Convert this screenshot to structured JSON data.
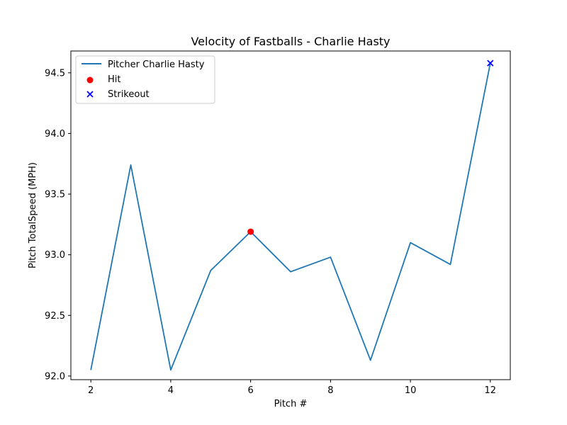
{
  "chart_data": {
    "type": "line",
    "title": "Velocity of Fastballs - Charlie Hasty",
    "xlabel": "Pitch #",
    "ylabel": "Pitch TotalSpeed (MPH)",
    "xlim": [
      1.5,
      12.5
    ],
    "ylim": [
      91.97,
      94.68
    ],
    "xticks": [
      2,
      4,
      6,
      8,
      10,
      12
    ],
    "yticks": [
      92.0,
      92.5,
      93.0,
      93.5,
      94.0,
      94.5
    ],
    "xtick_labels": [
      "2",
      "4",
      "6",
      "8",
      "10",
      "12"
    ],
    "ytick_labels": [
      "92.0",
      "92.5",
      "93.0",
      "93.5",
      "94.0",
      "94.5"
    ],
    "grid": false,
    "legend_position": "top-left",
    "series": [
      {
        "name": "Pitcher Charlie Hasty",
        "kind": "line",
        "color": "#1f77b4",
        "x": [
          2,
          3,
          4,
          5,
          6,
          7,
          8,
          9,
          10,
          11,
          12
        ],
        "y": [
          92.05,
          93.74,
          92.05,
          92.87,
          93.19,
          92.86,
          92.98,
          92.13,
          93.1,
          92.92,
          94.58
        ]
      },
      {
        "name": "Hit",
        "kind": "scatter",
        "marker": "circle",
        "color": "#ff0000",
        "x": [
          6
        ],
        "y": [
          93.19
        ]
      },
      {
        "name": "Strikeout",
        "kind": "scatter",
        "marker": "x",
        "color": "#0000ff",
        "x": [
          12
        ],
        "y": [
          94.58
        ]
      }
    ]
  }
}
